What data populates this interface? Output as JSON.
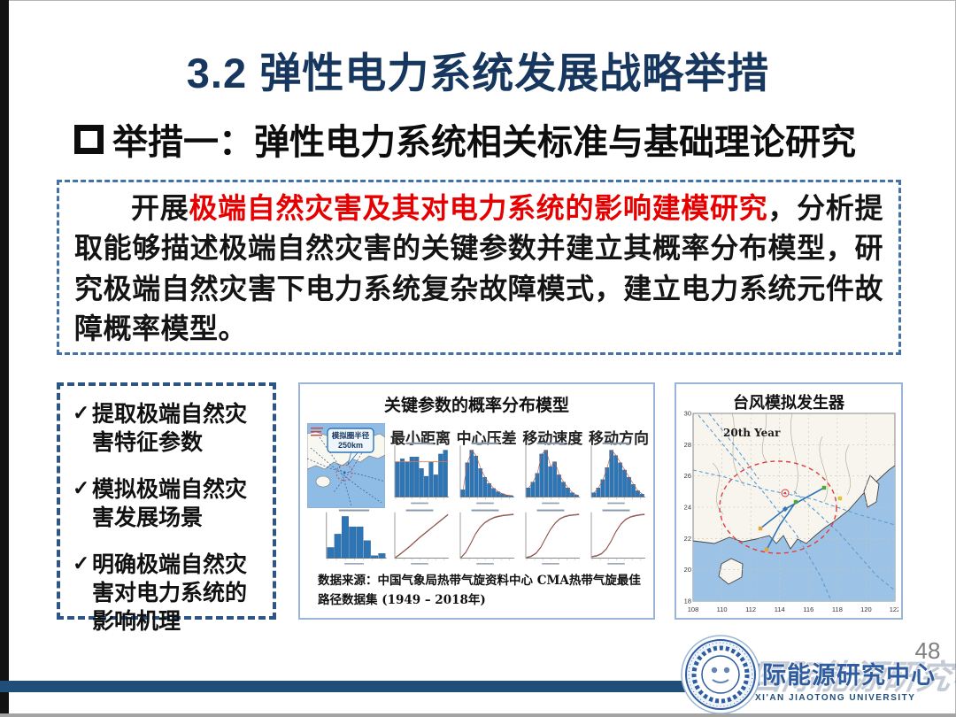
{
  "slide": {
    "title": "3.2 弹性电力系统发展战略举措",
    "subtitle": "举措一：弹性电力系统相关标准与基础理论研究",
    "page_number": "48"
  },
  "summary_box": {
    "lead": "开展",
    "highlight": "极端自然灾害及其对电力系统的影响建模研究",
    "rest": "，分析提取能够描述极端自然灾害的关键参数并建立其概率分布模型，研究极端自然灾害下电力系统复杂故障模式，建立电力系统元件故障概率模型。"
  },
  "checklist": {
    "items": [
      {
        "mark": "✓",
        "text": "提取极端自然灾害特征参数"
      },
      {
        "mark": "✓",
        "text": "模拟极端自然灾害发展场景"
      },
      {
        "mark": "✓",
        "text": "明确极端自然灾害对电力系统的影响机理"
      }
    ]
  },
  "prob_panel": {
    "title": "关键参数的概率分布模型",
    "param_labels": [
      "最小距离",
      "中心压差",
      "移动速度",
      "移动方向"
    ],
    "minimap_callout_line1": "模拟圈半径",
    "minimap_callout_line2": "250km",
    "source_line1": "数据来源：中国气象局热带气旋资料中心 CMA热带气旋最佳",
    "source_line2": "路径数据集 (1949 – 2018年)"
  },
  "typhoon_panel": {
    "title": "台风模拟发生器",
    "annotation": "20th Year",
    "x_ticks": [
      "108",
      "110",
      "112",
      "114",
      "116",
      "118",
      "120",
      "122"
    ],
    "y_ticks": [
      "30",
      "28",
      "26",
      "24",
      "22",
      "20",
      "18"
    ]
  },
  "footer": {
    "center_name": "国际能源研究中心",
    "university": "XI'AN JIAOTONG UNIVERSITY"
  },
  "colors": {
    "title_navy": "#17375E",
    "highlight_red": "#E60000",
    "footer_navy": "#1F4E79",
    "bar_blue": "#2E75B6",
    "panel_border": "#9BB5D8",
    "summary_dash_border": "#4472A8",
    "checklist_dash_border": "#2D5586",
    "sea_blue": "#9CC3E6",
    "track_blue": "#5B9BD5",
    "ellipse_red": "#E03C3C"
  },
  "chart_data": [
    {
      "id": "dist_hist",
      "type": "bar",
      "label": "最小距离",
      "values": [
        72,
        78,
        72,
        82,
        82,
        58,
        42,
        72,
        45,
        88,
        96
      ],
      "ref": 72
    },
    {
      "id": "pressure_hist",
      "type": "bar",
      "label": "中心压差",
      "values": [
        14,
        70,
        96,
        84,
        58,
        40,
        27,
        17,
        10,
        6,
        3,
        2
      ],
      "fit": true
    },
    {
      "id": "speed_hist",
      "type": "bar",
      "label": "移动速度",
      "values": [
        18,
        30,
        48,
        88,
        96,
        62,
        72,
        45,
        30,
        18,
        8,
        3
      ],
      "fit": true
    },
    {
      "id": "direction_hist",
      "type": "bar",
      "label": "移动方向",
      "values": [
        8,
        18,
        35,
        60,
        96,
        85,
        70,
        55,
        40,
        25,
        12,
        5
      ],
      "fit": true
    },
    {
      "id": "landfall_hist",
      "type": "bar",
      "values": [
        24,
        55,
        96,
        72,
        72,
        40,
        5,
        10
      ]
    },
    {
      "id": "cdf_distance",
      "type": "line",
      "values": [
        0,
        8,
        17,
        26,
        36,
        46,
        55,
        64,
        73,
        82,
        91,
        100
      ]
    },
    {
      "id": "cdf_pressure",
      "type": "line",
      "values": [
        0,
        12,
        32,
        54,
        70,
        81,
        88,
        93,
        96,
        98,
        99,
        100
      ]
    },
    {
      "id": "cdf_speed",
      "type": "line",
      "values": [
        0,
        3,
        10,
        24,
        45,
        65,
        80,
        90,
        95,
        98,
        99,
        100
      ]
    },
    {
      "id": "cdf_direction",
      "type": "line",
      "values": [
        2,
        4,
        9,
        20,
        38,
        60,
        77,
        88,
        94,
        97,
        99,
        100
      ]
    }
  ]
}
